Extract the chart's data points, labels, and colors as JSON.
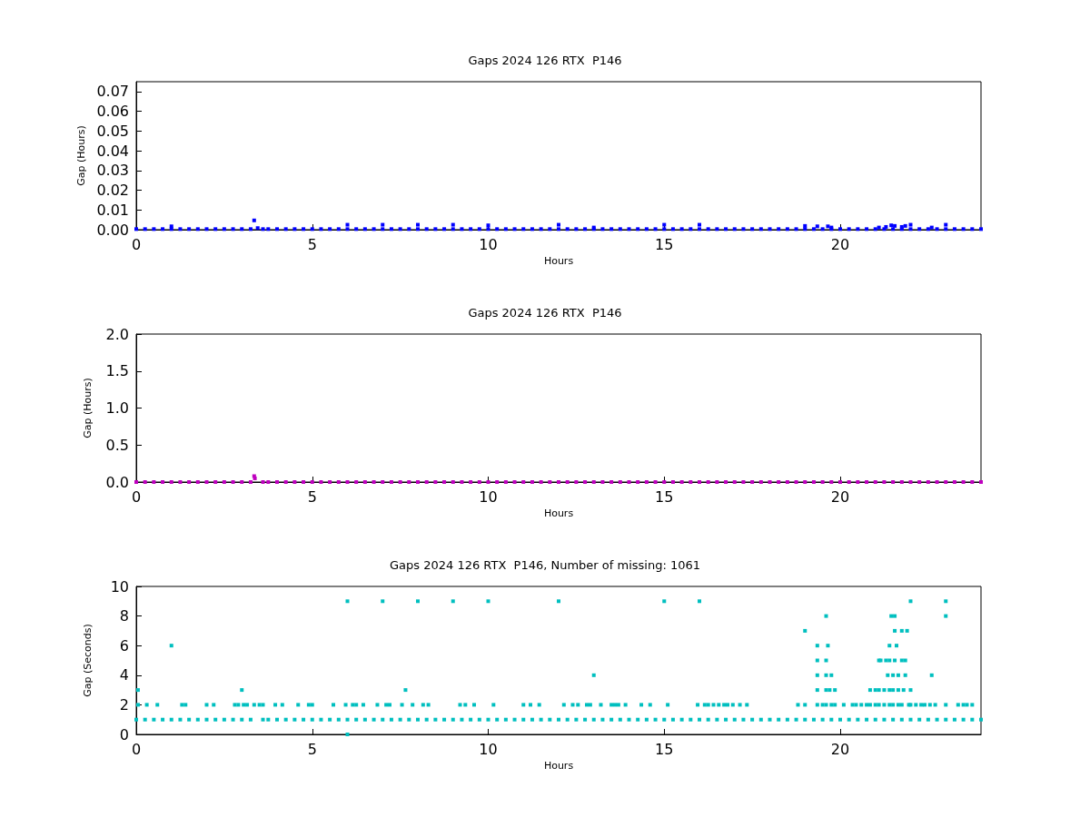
{
  "chart_data": [
    {
      "type": "scatter",
      "title": "Gaps 2024 126 RTX  P146",
      "xlabel": "Hours",
      "ylabel": "Gap (Hours)",
      "xlim": [
        0,
        24
      ],
      "xticks": [
        0,
        5,
        10,
        15,
        20
      ],
      "ylim": [
        0,
        0.075
      ],
      "yticks": [
        {
          "value": 0,
          "label": "0.00"
        },
        {
          "value": 0.01,
          "label": "0.01"
        },
        {
          "value": 0.02,
          "label": "0.02"
        },
        {
          "value": 0.03,
          "label": "0.03"
        },
        {
          "value": 0.04,
          "label": "0.04"
        },
        {
          "value": 0.05,
          "label": "0.05"
        },
        {
          "value": 0.06,
          "label": "0.06"
        },
        {
          "value": 0.07,
          "label": "0.07"
        }
      ],
      "marker": "square",
      "series": [
        {
          "color": "#0000ff",
          "x": [
            0,
            0.25,
            0.5,
            0.75,
            1,
            1.25,
            1.5,
            1.75,
            2,
            2.25,
            2.5,
            2.75,
            3,
            3.25,
            3.6,
            3.75,
            4,
            4.25,
            4.5,
            4.75,
            5,
            5.25,
            5.5,
            5.75,
            6,
            6.25,
            6.5,
            6.75,
            7,
            7.25,
            7.5,
            7.75,
            8,
            8.25,
            8.5,
            8.75,
            9,
            9.25,
            9.5,
            9.75,
            10,
            10.25,
            10.5,
            10.75,
            11,
            11.25,
            11.5,
            11.75,
            12,
            12.25,
            12.5,
            12.75,
            13,
            13.25,
            13.5,
            13.75,
            14,
            14.25,
            14.5,
            14.75,
            15,
            15.25,
            15.5,
            15.75,
            16,
            16.25,
            16.5,
            16.75,
            17,
            17.25,
            17.5,
            17.75,
            18,
            18.25,
            18.5,
            18.75,
            19,
            19.25,
            19.5,
            19.75,
            20,
            20.25,
            20.5,
            20.75,
            21,
            21.25,
            21.5,
            21.75,
            22,
            22.25,
            22.5,
            22.75,
            23,
            23.25,
            23.5,
            23.75,
            24
          ],
          "values": [
            0.0003,
            0.0003,
            0.0003,
            0.0003,
            0.0003,
            0.0003,
            0.0003,
            0.0003,
            0.0003,
            0.0003,
            0.0003,
            0.0003,
            0.0003,
            0.0003,
            0.0003,
            0.0003,
            0.0003,
            0.0003,
            0.0003,
            0.0003,
            0.0003,
            0.0003,
            0.0003,
            0.0003,
            0.0003,
            0.0003,
            0.0003,
            0.0003,
            0.0003,
            0.0003,
            0.0003,
            0.0003,
            0.0003,
            0.0003,
            0.0003,
            0.0003,
            0.0003,
            0.0003,
            0.0003,
            0.0003,
            0.0003,
            0.0003,
            0.0003,
            0.0003,
            0.0003,
            0.0003,
            0.0003,
            0.0003,
            0.0003,
            0.0003,
            0.0003,
            0.0003,
            0.0003,
            0.0003,
            0.0003,
            0.0003,
            0.0003,
            0.0003,
            0.0003,
            0.0003,
            0.0003,
            0.0003,
            0.0003,
            0.0003,
            0.0003,
            0.0003,
            0.0003,
            0.0003,
            0.0003,
            0.0003,
            0.0003,
            0.0003,
            0.0003,
            0.0003,
            0.0003,
            0.0003,
            0.0003,
            0.0003,
            0.0003,
            0.0003,
            0.0003,
            0.0003,
            0.0003,
            0.0003,
            0.0003,
            0.0003,
            0.0003,
            0.0003,
            0.0003,
            0.0003,
            0.0003,
            0.0003,
            0.0003,
            0.0003,
            0.0003,
            0.0003,
            0.0003
          ]
        },
        {
          "color": "#0000ff",
          "x": [
            1.0,
            3.35,
            3.45,
            6.0,
            7.0,
            8.0,
            9.0,
            10.0,
            12.0,
            13.0,
            15.0,
            16.0,
            19.0,
            19.35,
            19.65,
            19.75,
            21.1,
            21.3,
            21.45,
            21.55,
            21.75,
            21.85,
            22.0,
            22.6,
            23.0
          ],
          "values": [
            0.0017,
            0.0047,
            0.0008,
            0.0025,
            0.0025,
            0.0025,
            0.0025,
            0.0022,
            0.0025,
            0.0011,
            0.0025,
            0.0025,
            0.0019,
            0.0017,
            0.0017,
            0.0011,
            0.0011,
            0.0014,
            0.0022,
            0.0019,
            0.0014,
            0.0019,
            0.0025,
            0.0011,
            0.0025
          ]
        }
      ]
    },
    {
      "type": "scatter",
      "title": "Gaps 2024 126 RTX  P146",
      "xlabel": "Hours",
      "ylabel": "Gap (Hours)",
      "xlim": [
        0,
        24
      ],
      "xticks": [
        0,
        5,
        10,
        15,
        20
      ],
      "ylim": [
        0,
        2
      ],
      "yticks": [
        {
          "value": 0,
          "label": "0.0"
        },
        0.5,
        {
          "value": 1,
          "label": "1.0"
        },
        1.5,
        {
          "value": 2,
          "label": "2.0"
        }
      ],
      "marker": "square",
      "series": [
        {
          "color": "#bf00bf",
          "x": [
            0,
            0.25,
            0.5,
            0.75,
            1,
            1.25,
            1.5,
            1.75,
            2,
            2.25,
            2.5,
            2.75,
            3,
            3.25,
            3.6,
            3.75,
            4,
            4.25,
            4.5,
            4.75,
            5,
            5.25,
            5.5,
            5.75,
            6,
            6.25,
            6.5,
            6.75,
            7,
            7.25,
            7.5,
            7.75,
            8,
            8.25,
            8.5,
            8.75,
            9,
            9.25,
            9.5,
            9.75,
            10,
            10.25,
            10.5,
            10.75,
            11,
            11.25,
            11.5,
            11.75,
            12,
            12.25,
            12.5,
            12.75,
            13,
            13.25,
            13.5,
            13.75,
            14,
            14.25,
            14.5,
            14.75,
            15,
            15.25,
            15.5,
            15.75,
            16,
            16.25,
            16.5,
            16.75,
            17,
            17.25,
            17.5,
            17.75,
            18,
            18.25,
            18.5,
            18.75,
            19,
            19.25,
            19.5,
            19.75,
            20,
            20.25,
            20.5,
            20.75,
            21,
            21.25,
            21.5,
            21.75,
            22,
            22.25,
            22.5,
            22.75,
            23,
            23.25,
            23.5,
            23.75,
            24
          ],
          "values": [
            0,
            0,
            0,
            0,
            0,
            0,
            0,
            0,
            0,
            0,
            0,
            0,
            0,
            0,
            0,
            0,
            0,
            0,
            0,
            0,
            0,
            0,
            0,
            0,
            0,
            0,
            0,
            0,
            0,
            0,
            0,
            0,
            0,
            0,
            0,
            0,
            0,
            0,
            0,
            0,
            0,
            0,
            0,
            0,
            0,
            0,
            0,
            0,
            0,
            0,
            0,
            0,
            0,
            0,
            0,
            0,
            0,
            0,
            0,
            0,
            0,
            0,
            0,
            0,
            0,
            0,
            0,
            0,
            0,
            0,
            0,
            0,
            0,
            0,
            0,
            0,
            0,
            0,
            0,
            0,
            0,
            0,
            0,
            0,
            0,
            0,
            0,
            0,
            0,
            0,
            0,
            0,
            0,
            0,
            0,
            0,
            0
          ]
        },
        {
          "color": "#bf00bf",
          "x": [
            3.35,
            3.37
          ],
          "values": [
            0.08,
            0.05
          ]
        }
      ]
    },
    {
      "type": "scatter",
      "title": "Gaps 2024 126 RTX  P146, Number of missing: 1061",
      "xlabel": "Hours",
      "ylabel": "Gap (Seconds)",
      "xlim": [
        0,
        24
      ],
      "xticks": [
        0,
        5,
        10,
        15,
        20
      ],
      "ylim": [
        0,
        10
      ],
      "yticks": [
        0,
        2,
        4,
        6,
        8,
        10
      ],
      "marker": "square",
      "series": [
        {
          "color": "#00bfbf",
          "x": [
            0,
            0.25,
            0.5,
            0.75,
            1,
            1.25,
            1.5,
            1.75,
            2,
            2.25,
            2.5,
            2.75,
            3,
            3.25,
            3.6,
            3.75,
            4,
            4.25,
            4.5,
            4.75,
            5,
            5.25,
            5.5,
            5.75,
            6,
            6.25,
            6.5,
            6.75,
            7,
            7.25,
            7.5,
            7.75,
            8,
            8.25,
            8.5,
            8.75,
            9,
            9.25,
            9.5,
            9.75,
            10,
            10.25,
            10.5,
            10.75,
            11,
            11.25,
            11.5,
            11.75,
            12,
            12.25,
            12.5,
            12.75,
            13,
            13.25,
            13.5,
            13.75,
            14,
            14.25,
            14.5,
            14.75,
            15,
            15.25,
            15.5,
            15.75,
            16,
            16.25,
            16.5,
            16.75,
            17,
            17.25,
            17.5,
            17.75,
            18,
            18.25,
            18.5,
            18.75,
            19,
            19.25,
            19.5,
            19.75,
            20,
            20.25,
            20.5,
            20.75,
            21,
            21.25,
            21.5,
            21.75,
            22,
            22.25,
            22.5,
            22.75,
            23,
            23.25,
            23.5,
            23.75,
            24
          ],
          "values": [
            1,
            1,
            1,
            1,
            1,
            1,
            1,
            1,
            1,
            1,
            1,
            1,
            1,
            1,
            1,
            1,
            1,
            1,
            1,
            1,
            1,
            1,
            1,
            1,
            1,
            1,
            1,
            1,
            1,
            1,
            1,
            1,
            1,
            1,
            1,
            1,
            1,
            1,
            1,
            1,
            1,
            1,
            1,
            1,
            1,
            1,
            1,
            1,
            1,
            1,
            1,
            1,
            1,
            1,
            1,
            1,
            1,
            1,
            1,
            1,
            1,
            1,
            1,
            1,
            1,
            1,
            1,
            1,
            1,
            1,
            1,
            1,
            1,
            1,
            1,
            1,
            1,
            1,
            1,
            1,
            1,
            1,
            1,
            1,
            1,
            1,
            1,
            1,
            1,
            1,
            1,
            1,
            1,
            1,
            1,
            1,
            1
          ]
        },
        {
          "color": "#00bfbf",
          "x": [
            6.0,
            7.0,
            8.0,
            9.0,
            10.0,
            12.0,
            15.0,
            16.0,
            22.0,
            23.0,
            19.6,
            21.45,
            21.55,
            23.0,
            19.0,
            21.55,
            21.75,
            21.9,
            1.0,
            19.35,
            19.65,
            21.4,
            21.6,
            19.35,
            19.6,
            21.1,
            21.15,
            21.3,
            21.4,
            21.55,
            21.75,
            21.85,
            13.0,
            19.35,
            19.6,
            19.75,
            21.35,
            21.5,
            21.65,
            21.85,
            22.6,
            0.05,
            3.0,
            7.65,
            19.35,
            19.6,
            19.7,
            19.85,
            20.85,
            21.0,
            21.1,
            21.25,
            21.4,
            21.5,
            21.65,
            21.8,
            22.0,
            6.0
          ],
          "values": [
            9,
            9,
            9,
            9,
            9,
            9,
            9,
            9,
            9,
            9,
            8,
            8,
            8,
            8,
            7,
            7,
            7,
            7,
            6,
            6,
            6,
            6,
            6,
            5,
            5,
            5,
            5,
            5,
            5,
            5,
            5,
            5,
            4,
            4,
            4,
            4,
            4,
            4,
            4,
            4,
            4,
            3,
            3,
            3,
            3,
            3,
            3,
            3,
            3,
            3,
            3,
            3,
            3,
            3,
            3,
            3,
            3,
            0
          ]
        },
        {
          "color": "#00bfbf",
          "x": [
            0.05,
            0.3,
            0.6,
            1.3,
            1.4,
            2.0,
            2.2,
            2.8,
            2.9,
            3.05,
            3.15,
            3.35,
            3.5,
            3.6,
            3.95,
            4.15,
            4.6,
            4.9,
            5.0,
            5.6,
            5.95,
            6.15,
            6.25,
            6.45,
            6.85,
            7.1,
            7.2,
            7.55,
            7.85,
            8.15,
            8.3,
            9.2,
            9.35,
            9.6,
            10.15,
            11.0,
            11.2,
            11.45,
            12.15,
            12.4,
            12.55,
            12.8,
            12.9,
            13.2,
            13.5,
            13.6,
            13.7,
            13.9,
            14.35,
            14.6,
            15.1,
            15.95,
            16.15,
            16.25,
            16.4,
            16.55,
            16.7,
            16.8,
            16.95,
            17.15,
            17.35,
            18.8,
            19.0,
            19.35,
            19.5,
            19.6,
            19.75,
            19.85,
            20.1,
            20.35,
            20.45,
            20.6,
            20.75,
            20.85,
            21.0,
            21.1,
            21.25,
            21.4,
            21.5,
            21.65,
            21.75,
            21.95,
            22.0,
            22.15,
            22.3,
            22.4,
            22.55,
            22.7,
            23.0,
            23.35,
            23.5,
            23.6,
            23.75
          ],
          "values": [
            2,
            2,
            2,
            2,
            2,
            2,
            2,
            2,
            2,
            2,
            2,
            2,
            2,
            2,
            2,
            2,
            2,
            2,
            2,
            2,
            2,
            2,
            2,
            2,
            2,
            2,
            2,
            2,
            2,
            2,
            2,
            2,
            2,
            2,
            2,
            2,
            2,
            2,
            2,
            2,
            2,
            2,
            2,
            2,
            2,
            2,
            2,
            2,
            2,
            2,
            2,
            2,
            2,
            2,
            2,
            2,
            2,
            2,
            2,
            2,
            2,
            2,
            2,
            2,
            2,
            2,
            2,
            2,
            2,
            2,
            2,
            2,
            2,
            2,
            2,
            2,
            2,
            2,
            2,
            2,
            2,
            2,
            2,
            2,
            2,
            2,
            2,
            2,
            2,
            2,
            2,
            2,
            2
          ]
        }
      ]
    }
  ]
}
